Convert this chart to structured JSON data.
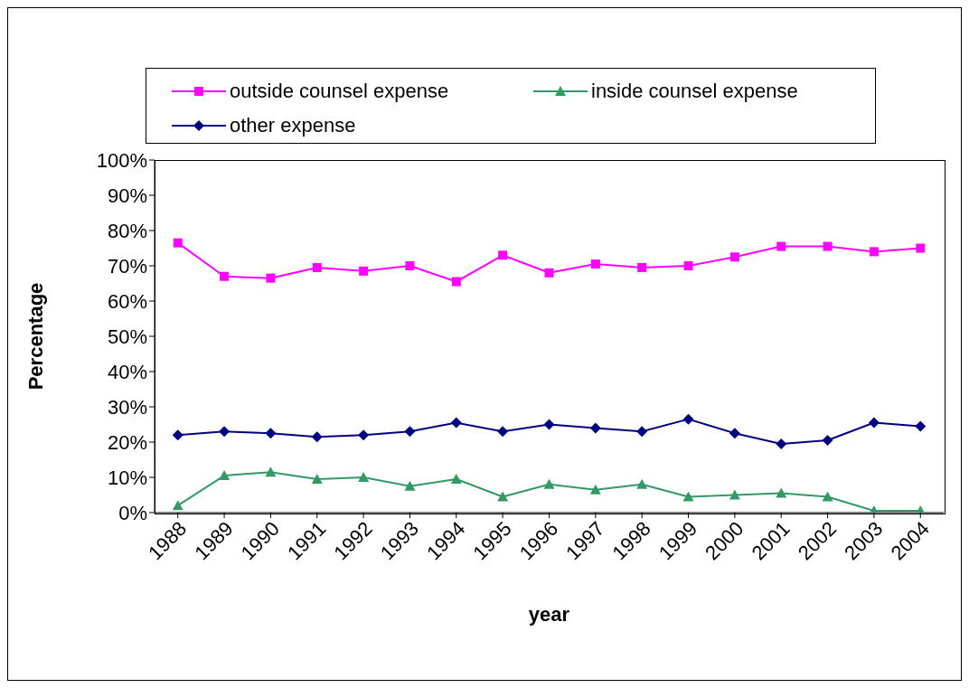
{
  "chart_data": {
    "type": "line",
    "xlabel": "year",
    "ylabel": "Percentage",
    "categories": [
      "1988",
      "1989",
      "1990",
      "1991",
      "1992",
      "1993",
      "1994",
      "1995",
      "1996",
      "1997",
      "1998",
      "1999",
      "2000",
      "2001",
      "2002",
      "2003",
      "2004"
    ],
    "series": [
      {
        "name": "outside counsel expense",
        "color": "#ff00ff",
        "marker": "square",
        "values": [
          76.5,
          67,
          66.5,
          69.5,
          68.5,
          70,
          65.5,
          73,
          68,
          70.5,
          69.5,
          70,
          72.5,
          75.5,
          75.5,
          74,
          75
        ]
      },
      {
        "name": "inside counsel expense",
        "color": "#339966",
        "marker": "triangle",
        "values": [
          2,
          10.5,
          11.5,
          9.5,
          10,
          7.5,
          9.5,
          4.5,
          8,
          6.5,
          8,
          4.5,
          5,
          5.5,
          4.5,
          0.5,
          0.5
        ]
      },
      {
        "name": "other expense",
        "color": "#000080",
        "marker": "diamond",
        "values": [
          22,
          23,
          22.5,
          21.5,
          22,
          23,
          25.5,
          23,
          25,
          24,
          23,
          26.5,
          22.5,
          19.5,
          20.5,
          25.5,
          24.5
        ]
      }
    ],
    "ylim": [
      0,
      100
    ],
    "yticks": [
      {
        "value": 0,
        "label": "0%"
      },
      {
        "value": 10,
        "label": "10%"
      },
      {
        "value": 20,
        "label": "20%"
      },
      {
        "value": 30,
        "label": "30%"
      },
      {
        "value": 40,
        "label": "40%"
      },
      {
        "value": 50,
        "label": "50%"
      },
      {
        "value": 60,
        "label": "60%"
      },
      {
        "value": 70,
        "label": "70%"
      },
      {
        "value": 80,
        "label": "80%"
      },
      {
        "value": 90,
        "label": "90%"
      },
      {
        "value": 100,
        "label": "100%"
      }
    ],
    "grid": false,
    "legend": "top",
    "line_style": "solid"
  }
}
